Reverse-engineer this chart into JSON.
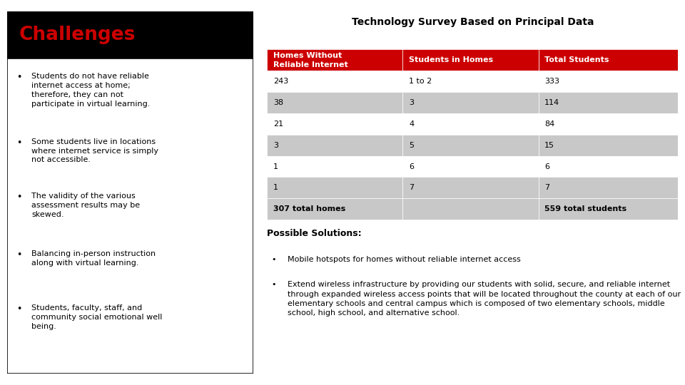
{
  "title": "Technology Survey Based on Principal Data",
  "challenges_title": "Challenges",
  "challenges_bullets": [
    "Students do not have reliable\ninternet access at home;\ntherefore, they can not\nparticipate in virtual learning.",
    "Some students live in locations\nwhere internet service is simply\nnot accessible.",
    "The validity of the various\nassessment results may be\nskewed.",
    "Balancing in-person instruction\nalong with virtual learning.",
    "Students, faculty, staff, and\ncommunity social emotional well\nbeing."
  ],
  "table_headers": [
    "Homes Without\nReliable Internet",
    "Students in Homes",
    "Total Students"
  ],
  "table_rows": [
    [
      "243",
      "1 to 2",
      "333"
    ],
    [
      "38",
      "3",
      "114"
    ],
    [
      "21",
      "4",
      "84"
    ],
    [
      "3",
      "5",
      "15"
    ],
    [
      "1",
      "6",
      "6"
    ],
    [
      "1",
      "7",
      "7"
    ],
    [
      "307 total homes",
      "",
      "559 total students"
    ]
  ],
  "possible_solutions_title": "Possible Solutions:",
  "possible_solutions_bullets": [
    "Mobile hotspots for homes without reliable internet access",
    "Extend wireless infrastructure by providing our students with solid, secure, and reliable internet through expanded wireless access points that will be located throughout the county at each of our elementary schools and central campus which is composed of two elementary schools, middle school, high school, and alternative school."
  ],
  "color_red": "#CC0000",
  "color_black": "#000000",
  "color_white": "#FFFFFF",
  "color_gray_light": "#C8C8C8",
  "color_bg": "#FFFFFF",
  "title_fontsize": 10,
  "challenges_title_fontsize": 19,
  "body_fontsize": 8,
  "table_header_fontsize": 8,
  "solutions_title_fontsize": 9
}
